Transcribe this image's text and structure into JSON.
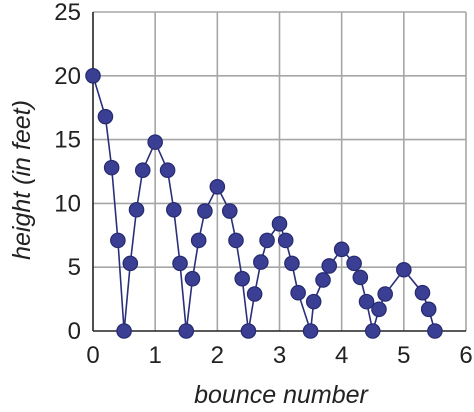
{
  "chart_data": {
    "type": "line",
    "title": "",
    "xlabel": "bounce number",
    "ylabel": "height (in feet)",
    "xlim": [
      0,
      6
    ],
    "ylim": [
      0,
      25
    ],
    "xticks": [
      "0",
      "1",
      "2",
      "3",
      "4",
      "5",
      "6"
    ],
    "yticks": [
      "0",
      "5",
      "10",
      "15",
      "20",
      "25"
    ],
    "grid": true,
    "legend": "none",
    "colors": {
      "line": "#2a2f7a",
      "marker_fill": "#3a3f93",
      "marker_stroke": "#262a6e",
      "grid": "#a6a6a6",
      "axis": "#222222"
    },
    "series": [
      {
        "points": [
          [
            0,
            20
          ],
          [
            0.2,
            16.8
          ],
          [
            0.3,
            12.8
          ],
          [
            0.4,
            7.1
          ],
          [
            0.5,
            0
          ],
          [
            0.6,
            5.3
          ],
          [
            0.7,
            9.5
          ],
          [
            0.8,
            12.6
          ],
          [
            1.0,
            14.8
          ],
          [
            1.2,
            12.6
          ],
          [
            1.3,
            9.5
          ],
          [
            1.4,
            5.3
          ],
          [
            1.5,
            0
          ],
          [
            1.6,
            4.1
          ],
          [
            1.7,
            7.1
          ],
          [
            1.8,
            9.4
          ],
          [
            2.0,
            11.3
          ],
          [
            2.2,
            9.4
          ],
          [
            2.3,
            7.1
          ],
          [
            2.4,
            4.1
          ],
          [
            2.5,
            0
          ],
          [
            2.6,
            2.9
          ],
          [
            2.7,
            5.4
          ],
          [
            2.8,
            7.1
          ],
          [
            3.0,
            8.4
          ],
          [
            3.1,
            7.1
          ],
          [
            3.2,
            5.3
          ],
          [
            3.3,
            3.0
          ],
          [
            3.5,
            0
          ],
          [
            3.55,
            2.3
          ],
          [
            3.7,
            4.0
          ],
          [
            3.8,
            5.1
          ],
          [
            4.0,
            6.4
          ],
          [
            4.2,
            5.3
          ],
          [
            4.3,
            4.2
          ],
          [
            4.4,
            2.3
          ],
          [
            4.5,
            0
          ],
          [
            4.6,
            1.7
          ],
          [
            4.7,
            2.9
          ],
          [
            5.0,
            4.8
          ],
          [
            5.3,
            3.0
          ],
          [
            5.4,
            1.7
          ],
          [
            5.5,
            0
          ]
        ]
      }
    ]
  }
}
